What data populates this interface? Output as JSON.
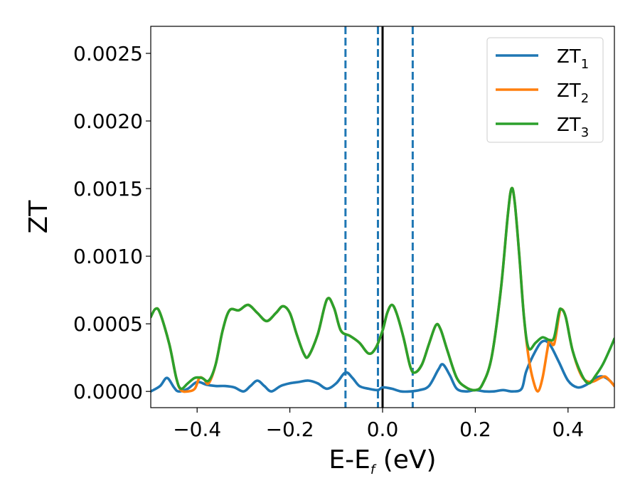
{
  "chart_data": {
    "type": "line",
    "xlabel_main": "E-E",
    "xlabel_sub": "f",
    "xlabel_unit": " (eV)",
    "ylabel": "ZT",
    "xlim": [
      -0.5,
      0.5
    ],
    "ylim": [
      -0.00012,
      0.0027
    ],
    "xticks": [
      -0.4,
      -0.2,
      0.0,
      0.2,
      0.4
    ],
    "xtick_labels": [
      "−0.4",
      "−0.2",
      "0.0",
      "0.2",
      "0.4"
    ],
    "yticks": [
      0.0,
      0.0005,
      0.001,
      0.0015,
      0.002,
      0.0025
    ],
    "ytick_labels": [
      "0.0000",
      "0.0005",
      "0.0010",
      "0.0015",
      "0.0020",
      "0.0025"
    ],
    "legend_position": "top-right",
    "grid": false,
    "vlines": [
      {
        "x": -0.08,
        "style": "dashed",
        "color": "#1f77b4"
      },
      {
        "x": -0.01,
        "style": "dashed",
        "color": "#1f77b4"
      },
      {
        "x": 0.0,
        "style": "solid",
        "color": "#000000"
      },
      {
        "x": 0.065,
        "style": "dashed",
        "color": "#1f77b4"
      }
    ],
    "series": [
      {
        "name": "ZT",
        "sub": "1",
        "color": "#1f77b4",
        "points": [
          [
            -0.5,
            0.0
          ],
          [
            -0.48,
            4e-05
          ],
          [
            -0.465,
            0.0001
          ],
          [
            -0.45,
            3e-05
          ],
          [
            -0.44,
            0.0
          ],
          [
            -0.42,
            2e-05
          ],
          [
            -0.4,
            7e-05
          ],
          [
            -0.38,
            5e-05
          ],
          [
            -0.36,
            4e-05
          ],
          [
            -0.34,
            4e-05
          ],
          [
            -0.32,
            3e-05
          ],
          [
            -0.3,
            0.0
          ],
          [
            -0.285,
            4e-05
          ],
          [
            -0.27,
            8e-05
          ],
          [
            -0.255,
            4e-05
          ],
          [
            -0.24,
            0.0
          ],
          [
            -0.22,
            4e-05
          ],
          [
            -0.2,
            6e-05
          ],
          [
            -0.18,
            7e-05
          ],
          [
            -0.16,
            8e-05
          ],
          [
            -0.14,
            6e-05
          ],
          [
            -0.12,
            2e-05
          ],
          [
            -0.1,
            6e-05
          ],
          [
            -0.08,
            0.00014
          ],
          [
            -0.065,
            0.0001
          ],
          [
            -0.05,
            4e-05
          ],
          [
            -0.03,
            2e-05
          ],
          [
            -0.01,
            1e-05
          ],
          [
            0.0,
            3e-05
          ],
          [
            0.02,
            2e-05
          ],
          [
            0.04,
            0.0
          ],
          [
            0.06,
            0.0
          ],
          [
            0.08,
            1e-05
          ],
          [
            0.1,
            4e-05
          ],
          [
            0.12,
            0.00016
          ],
          [
            0.13,
            0.0002
          ],
          [
            0.145,
            0.00012
          ],
          [
            0.16,
            2e-05
          ],
          [
            0.18,
            0.0
          ],
          [
            0.2,
            1e-05
          ],
          [
            0.22,
            0.0
          ],
          [
            0.24,
            0.0
          ],
          [
            0.26,
            1e-05
          ],
          [
            0.28,
            0.0
          ],
          [
            0.3,
            2e-05
          ],
          [
            0.31,
            0.00015
          ],
          [
            0.33,
            0.0003
          ],
          [
            0.345,
            0.00037
          ],
          [
            0.36,
            0.00035
          ],
          [
            0.38,
            0.00022
          ],
          [
            0.4,
            8e-05
          ],
          [
            0.42,
            3e-05
          ],
          [
            0.44,
            5e-05
          ],
          [
            0.46,
            0.0001
          ],
          [
            0.475,
            0.00011
          ],
          [
            0.49,
            8e-05
          ],
          [
            0.5,
            4e-05
          ]
        ]
      },
      {
        "name": "ZT",
        "sub": "2",
        "color": "#ff7f0e",
        "points": [
          [
            -0.5,
            0.00055
          ],
          [
            -0.49,
            0.00061
          ],
          [
            -0.48,
            0.00058
          ],
          [
            -0.46,
            0.00035
          ],
          [
            -0.445,
            0.0001
          ],
          [
            -0.435,
            1e-05
          ],
          [
            -0.42,
            0.0
          ],
          [
            -0.405,
            2e-05
          ],
          [
            -0.395,
            0.0001
          ],
          [
            -0.385,
            9e-05
          ],
          [
            -0.375,
            6e-05
          ],
          [
            -0.36,
            0.0002
          ],
          [
            -0.345,
            0.00045
          ],
          [
            -0.33,
            0.0006
          ],
          [
            -0.31,
            0.0006
          ],
          [
            -0.29,
            0.00064
          ],
          [
            -0.27,
            0.00058
          ],
          [
            -0.25,
            0.00052
          ],
          [
            -0.23,
            0.00058
          ],
          [
            -0.215,
            0.00063
          ],
          [
            -0.2,
            0.00058
          ],
          [
            -0.185,
            0.00042
          ],
          [
            -0.17,
            0.00028
          ],
          [
            -0.16,
            0.00026
          ],
          [
            -0.14,
            0.00042
          ],
          [
            -0.12,
            0.00068
          ],
          [
            -0.105,
            0.00062
          ],
          [
            -0.09,
            0.00045
          ],
          [
            -0.07,
            0.00041
          ],
          [
            -0.05,
            0.00036
          ],
          [
            -0.03,
            0.00028
          ],
          [
            -0.015,
            0.00032
          ],
          [
            0.0,
            0.00045
          ],
          [
            0.01,
            0.00058
          ],
          [
            0.02,
            0.00064
          ],
          [
            0.03,
            0.00058
          ],
          [
            0.045,
            0.0004
          ],
          [
            0.06,
            0.00018
          ],
          [
            0.07,
            0.00014
          ],
          [
            0.085,
            0.0002
          ],
          [
            0.1,
            0.00035
          ],
          [
            0.115,
            0.00049
          ],
          [
            0.125,
            0.00046
          ],
          [
            0.14,
            0.0003
          ],
          [
            0.16,
            0.0001
          ],
          [
            0.18,
            3e-05
          ],
          [
            0.2,
            1e-05
          ],
          [
            0.215,
            5e-05
          ],
          [
            0.235,
            0.00025
          ],
          [
            0.255,
            0.00075
          ],
          [
            0.27,
            0.0013
          ],
          [
            0.278,
            0.0015
          ],
          [
            0.285,
            0.0014
          ],
          [
            0.295,
            0.001
          ],
          [
            0.305,
            0.00055
          ],
          [
            0.315,
            0.00025
          ],
          [
            0.325,
            8e-05
          ],
          [
            0.335,
            0.0
          ],
          [
            0.345,
            0.0001
          ],
          [
            0.355,
            0.0003
          ],
          [
            0.36,
            0.00038
          ],
          [
            0.37,
            0.00035
          ],
          [
            0.38,
            0.00055
          ],
          [
            0.385,
            0.00061
          ],
          [
            0.395,
            0.00055
          ],
          [
            0.41,
            0.0003
          ],
          [
            0.43,
            0.00011
          ],
          [
            0.45,
            7e-05
          ],
          [
            0.47,
            0.0001
          ],
          [
            0.48,
            0.00011
          ],
          [
            0.49,
            8e-05
          ],
          [
            0.5,
            4e-05
          ]
        ]
      },
      {
        "name": "ZT",
        "sub": "3",
        "color": "#2ca02c",
        "points": [
          [
            -0.5,
            0.00055
          ],
          [
            -0.49,
            0.00061
          ],
          [
            -0.48,
            0.00058
          ],
          [
            -0.46,
            0.00035
          ],
          [
            -0.445,
            0.0001
          ],
          [
            -0.435,
            2e-05
          ],
          [
            -0.42,
            6e-05
          ],
          [
            -0.405,
            0.0001
          ],
          [
            -0.39,
            0.0001
          ],
          [
            -0.375,
            8e-05
          ],
          [
            -0.36,
            0.0002
          ],
          [
            -0.345,
            0.00045
          ],
          [
            -0.33,
            0.0006
          ],
          [
            -0.31,
            0.0006
          ],
          [
            -0.29,
            0.00064
          ],
          [
            -0.27,
            0.00058
          ],
          [
            -0.25,
            0.00052
          ],
          [
            -0.23,
            0.00058
          ],
          [
            -0.215,
            0.00063
          ],
          [
            -0.2,
            0.00058
          ],
          [
            -0.185,
            0.00042
          ],
          [
            -0.17,
            0.00028
          ],
          [
            -0.16,
            0.00026
          ],
          [
            -0.14,
            0.00042
          ],
          [
            -0.12,
            0.00068
          ],
          [
            -0.105,
            0.00062
          ],
          [
            -0.09,
            0.00045
          ],
          [
            -0.07,
            0.00041
          ],
          [
            -0.05,
            0.00036
          ],
          [
            -0.03,
            0.00028
          ],
          [
            -0.015,
            0.00032
          ],
          [
            0.0,
            0.00045
          ],
          [
            0.01,
            0.00058
          ],
          [
            0.02,
            0.00064
          ],
          [
            0.03,
            0.00058
          ],
          [
            0.045,
            0.0004
          ],
          [
            0.06,
            0.00018
          ],
          [
            0.07,
            0.00014
          ],
          [
            0.085,
            0.0002
          ],
          [
            0.1,
            0.00035
          ],
          [
            0.115,
            0.00049
          ],
          [
            0.125,
            0.00046
          ],
          [
            0.14,
            0.0003
          ],
          [
            0.16,
            0.0001
          ],
          [
            0.18,
            3e-05
          ],
          [
            0.2,
            1e-05
          ],
          [
            0.215,
            5e-05
          ],
          [
            0.235,
            0.00025
          ],
          [
            0.255,
            0.00075
          ],
          [
            0.27,
            0.0013
          ],
          [
            0.278,
            0.0015
          ],
          [
            0.285,
            0.0014
          ],
          [
            0.295,
            0.001
          ],
          [
            0.305,
            0.00055
          ],
          [
            0.315,
            0.00032
          ],
          [
            0.33,
            0.00036
          ],
          [
            0.345,
            0.0004
          ],
          [
            0.36,
            0.00038
          ],
          [
            0.37,
            0.0004
          ],
          [
            0.38,
            0.00058
          ],
          [
            0.385,
            0.00061
          ],
          [
            0.395,
            0.00055
          ],
          [
            0.41,
            0.0003
          ],
          [
            0.43,
            0.00012
          ],
          [
            0.445,
            6e-05
          ],
          [
            0.46,
            0.00012
          ],
          [
            0.475,
            0.0002
          ],
          [
            0.49,
            0.00031
          ],
          [
            0.5,
            0.00039
          ]
        ]
      }
    ]
  }
}
